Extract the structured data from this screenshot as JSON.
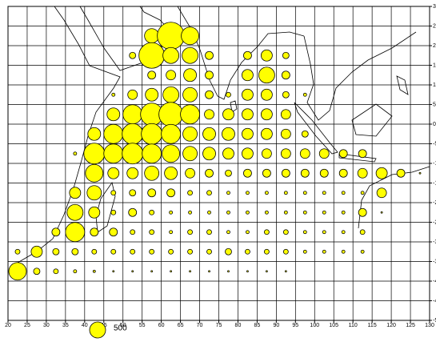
{
  "chart_data": {
    "type": "bubble",
    "xlim": [
      20,
      130
    ],
    "ylim": [
      -50,
      30
    ],
    "xticks": [
      20,
      25,
      30,
      35,
      40,
      45,
      50,
      55,
      60,
      65,
      70,
      75,
      80,
      85,
      90,
      95,
      100,
      105,
      110,
      115,
      120,
      125,
      130
    ],
    "yticks": [
      -50,
      -45,
      -40,
      -35,
      -30,
      -25,
      -20,
      -15,
      -10,
      -5,
      0,
      5,
      10,
      15,
      20,
      25,
      30
    ],
    "grid": true,
    "color": "#ffff00",
    "x": [
      57.5,
      62.5,
      67.5,
      52.5,
      57.5,
      62.5,
      67.5,
      72.5,
      82.5,
      87.5,
      92.5,
      57.5,
      62.5,
      67.5,
      72.5,
      82.5,
      87.5,
      92.5,
      47.5,
      52.5,
      57.5,
      62.5,
      67.5,
      72.5,
      77.5,
      82.5,
      87.5,
      92.5,
      97.5,
      47.5,
      52.5,
      57.5,
      62.5,
      67.5,
      72.5,
      77.5,
      82.5,
      87.5,
      92.5,
      42.5,
      47.5,
      52.5,
      57.5,
      62.5,
      67.5,
      72.5,
      77.5,
      82.5,
      87.5,
      92.5,
      97.5,
      37.5,
      42.5,
      47.5,
      52.5,
      57.5,
      62.5,
      67.5,
      72.5,
      77.5,
      82.5,
      87.5,
      92.5,
      97.5,
      102.5,
      107.5,
      112.5,
      42.5,
      47.5,
      52.5,
      57.5,
      62.5,
      67.5,
      72.5,
      77.5,
      82.5,
      87.5,
      92.5,
      97.5,
      102.5,
      107.5,
      112.5,
      117.5,
      122.5,
      127.5,
      37.5,
      42.5,
      47.5,
      52.5,
      57.5,
      62.5,
      67.5,
      72.5,
      77.5,
      82.5,
      87.5,
      92.5,
      97.5,
      102.5,
      107.5,
      112.5,
      117.5,
      37.5,
      42.5,
      47.5,
      52.5,
      57.5,
      62.5,
      67.5,
      72.5,
      77.5,
      82.5,
      87.5,
      92.5,
      97.5,
      102.5,
      107.5,
      112.5,
      117.5,
      32.5,
      37.5,
      42.5,
      47.5,
      52.5,
      57.5,
      62.5,
      67.5,
      72.5,
      77.5,
      82.5,
      87.5,
      92.5,
      97.5,
      102.5,
      107.5,
      112.5,
      22.5,
      27.5,
      32.5,
      37.5,
      42.5,
      47.5,
      52.5,
      57.5,
      62.5,
      67.5,
      72.5,
      77.5,
      82.5,
      87.5,
      92.5,
      97.5,
      102.5,
      107.5,
      112.5,
      22.5,
      27.5,
      32.5,
      37.5,
      42.5,
      47.5,
      52.5,
      57.5,
      62.5,
      67.5,
      72.5,
      77.5,
      82.5,
      87.5,
      92.5
    ],
    "y": [
      22.5,
      22.5,
      22.5,
      17.5,
      17.5,
      17.5,
      17.5,
      17.5,
      17.5,
      17.5,
      17.5,
      12.5,
      12.5,
      12.5,
      12.5,
      12.5,
      12.5,
      12.5,
      7.5,
      7.5,
      7.5,
      7.5,
      7.5,
      7.5,
      7.5,
      7.5,
      7.5,
      7.5,
      7.5,
      2.5,
      2.5,
      2.5,
      2.5,
      2.5,
      2.5,
      2.5,
      2.5,
      2.5,
      2.5,
      -2.5,
      -2.5,
      -2.5,
      -2.5,
      -2.5,
      -2.5,
      -2.5,
      -2.5,
      -2.5,
      -2.5,
      -2.5,
      -2.5,
      -7.5,
      -7.5,
      -7.5,
      -7.5,
      -7.5,
      -7.5,
      -7.5,
      -7.5,
      -7.5,
      -7.5,
      -7.5,
      -7.5,
      -7.5,
      -7.5,
      -7.5,
      -7.5,
      -12.5,
      -12.5,
      -12.5,
      -12.5,
      -12.5,
      -12.5,
      -12.5,
      -12.5,
      -12.5,
      -12.5,
      -12.5,
      -12.5,
      -12.5,
      -12.5,
      -12.5,
      -12.5,
      -12.5,
      -12.5,
      -17.5,
      -17.5,
      -17.5,
      -17.5,
      -17.5,
      -17.5,
      -17.5,
      -17.5,
      -17.5,
      -17.5,
      -17.5,
      -17.5,
      -17.5,
      -17.5,
      -17.5,
      -17.5,
      -17.5,
      -22.5,
      -22.5,
      -22.5,
      -22.5,
      -22.5,
      -22.5,
      -22.5,
      -22.5,
      -22.5,
      -22.5,
      -22.5,
      -22.5,
      -22.5,
      -22.5,
      -22.5,
      -22.5,
      -22.5,
      -27.5,
      -27.5,
      -27.5,
      -27.5,
      -27.5,
      -27.5,
      -27.5,
      -27.5,
      -27.5,
      -27.5,
      -27.5,
      -27.5,
      -27.5,
      -27.5,
      -27.5,
      -27.5,
      -27.5,
      -32.5,
      -32.5,
      -32.5,
      -32.5,
      -32.5,
      -32.5,
      -32.5,
      -32.5,
      -32.5,
      -32.5,
      -32.5,
      -32.5,
      -32.5,
      -32.5,
      -32.5,
      -32.5,
      -32.5,
      -32.5,
      -32.5,
      -37.5,
      -37.5,
      -37.5,
      -37.5,
      -37.5,
      -37.5,
      -37.5,
      -37.5,
      -37.5,
      -37.5,
      -37.5,
      -37.5,
      -37.5,
      -37.5,
      -37.5
    ],
    "sizes": [
      405,
      1445,
      605,
      80,
      1280,
      500,
      500,
      125,
      125,
      245,
      80,
      125,
      180,
      320,
      125,
      245,
      500,
      125,
      20,
      180,
      320,
      500,
      405,
      125,
      45,
      245,
      245,
      80,
      20,
      320,
      720,
      980,
      1125,
      720,
      180,
      245,
      245,
      245,
      180,
      320,
      720,
      845,
      845,
      720,
      405,
      320,
      320,
      245,
      245,
      180,
      80,
      20,
      845,
      720,
      845,
      720,
      605,
      405,
      320,
      245,
      245,
      180,
      180,
      180,
      180,
      125,
      125,
      605,
      245,
      245,
      405,
      320,
      180,
      125,
      80,
      125,
      125,
      125,
      125,
      125,
      125,
      180,
      245,
      125,
      5,
      245,
      405,
      45,
      80,
      125,
      125,
      45,
      45,
      20,
      20,
      20,
      20,
      20,
      20,
      20,
      20,
      180,
      500,
      245,
      45,
      125,
      45,
      20,
      20,
      20,
      20,
      20,
      20,
      20,
      20,
      20,
      20,
      125,
      5,
      125,
      720,
      125,
      125,
      45,
      45,
      20,
      45,
      45,
      20,
      20,
      45,
      45,
      20,
      20,
      20,
      45,
      45,
      245,
      80,
      80,
      45,
      45,
      45,
      45,
      45,
      45,
      45,
      80,
      45,
      45,
      45,
      20,
      20,
      20,
      20,
      605,
      80,
      45,
      20,
      11,
      5,
      5,
      5,
      5,
      5,
      5,
      5,
      5,
      5,
      5
    ],
    "size_legend": 500
  }
}
